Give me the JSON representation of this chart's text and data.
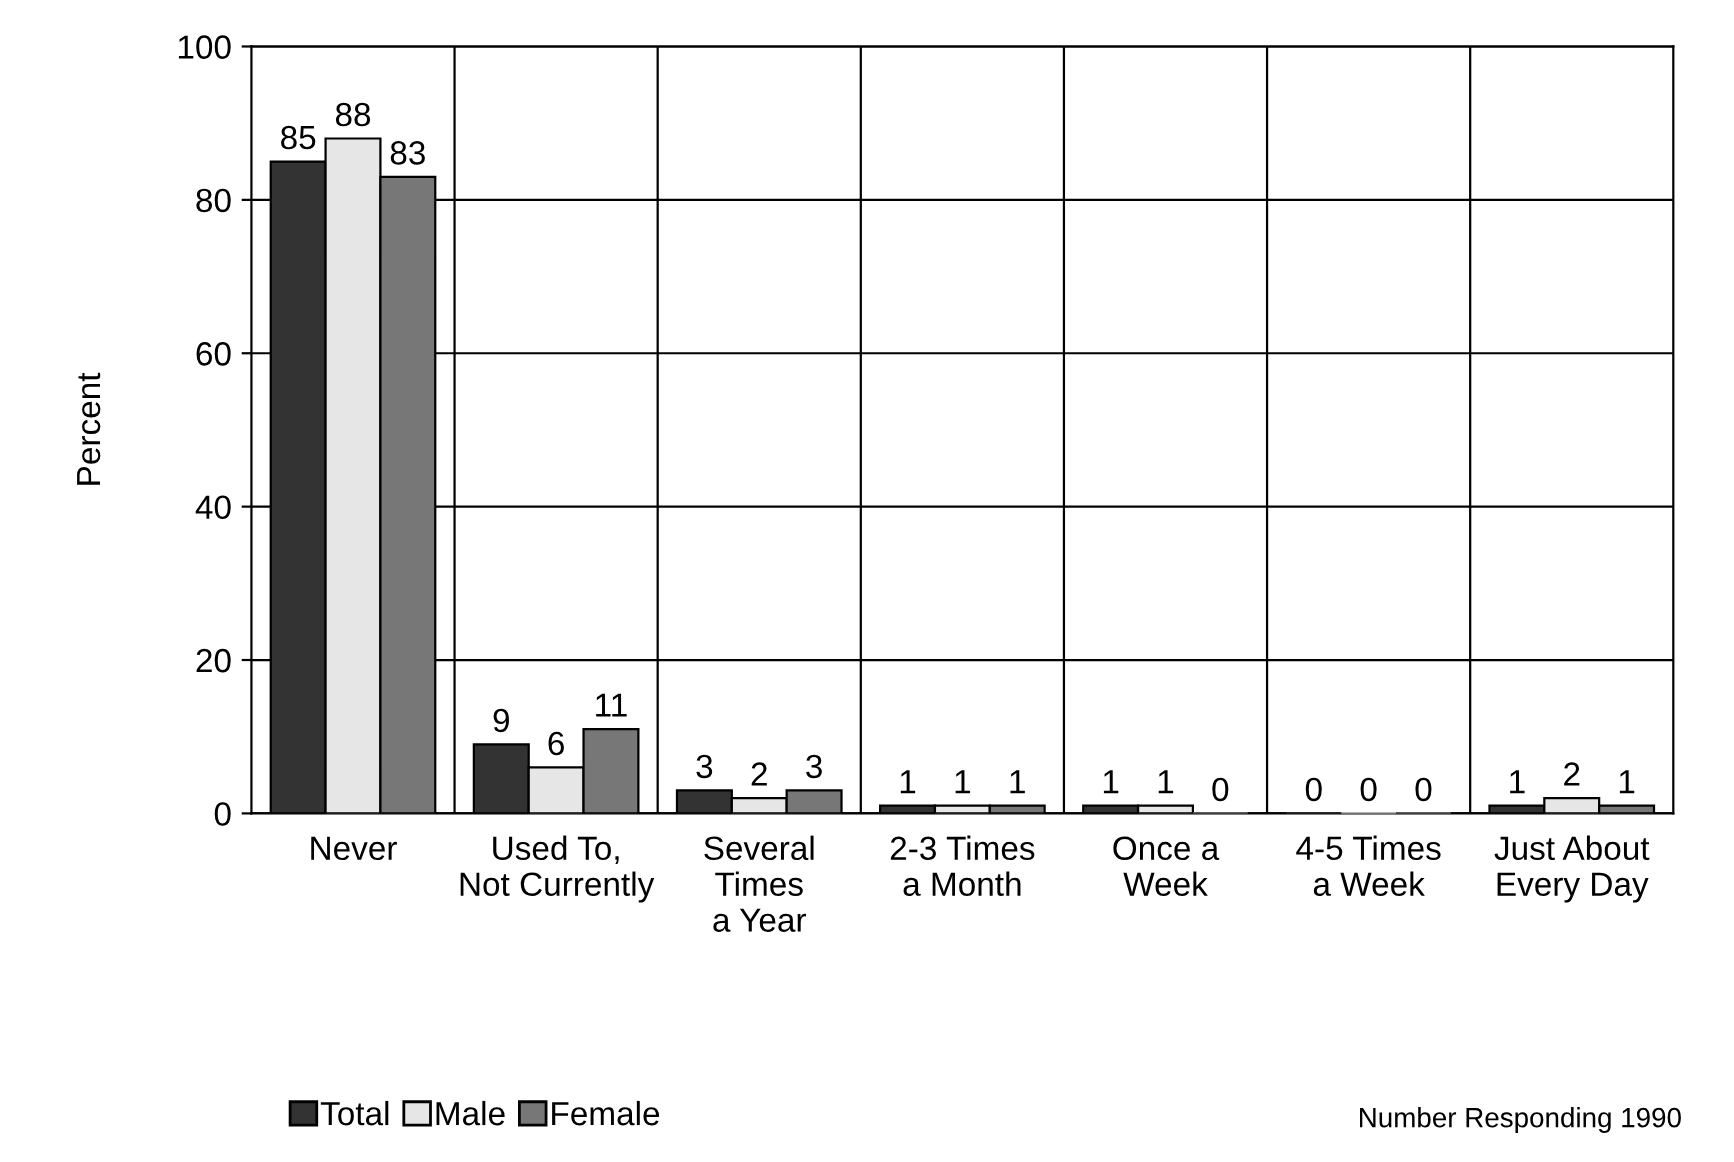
{
  "chart_data": {
    "type": "bar",
    "ylabel": "Percent",
    "categories": [
      "Never",
      "Used To,\nNot Currently",
      "Several\nTimes\na Year",
      "2-3 Times\na Month",
      "Once a\nWeek",
      "4-5 Times\na Week",
      "Just About\nEvery Day"
    ],
    "series": [
      {
        "name": "Total",
        "color": "#333333",
        "values": [
          85,
          9,
          3,
          1,
          1,
          0,
          1
        ]
      },
      {
        "name": "Male",
        "color": "#e6e6e6",
        "values": [
          88,
          6,
          2,
          1,
          1,
          0,
          2
        ]
      },
      {
        "name": "Female",
        "color": "#777777",
        "values": [
          83,
          11,
          3,
          1,
          0,
          0,
          1
        ]
      }
    ],
    "ylim": [
      0,
      100
    ],
    "yticks": [
      0,
      20,
      40,
      60,
      80,
      100
    ],
    "grid": true,
    "legend": "bottom left",
    "data_labels": true,
    "annotations": [
      "Number Responding 1990"
    ]
  }
}
